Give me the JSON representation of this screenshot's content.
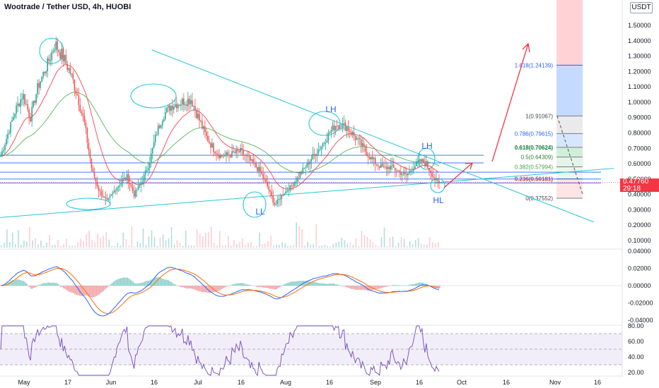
{
  "header": {
    "title": "Wootrade / Tether USD, 4h, HUOBI",
    "currency_button": "USDT"
  },
  "last_price": {
    "value": "0.47760",
    "countdown": "29:18"
  },
  "colors": {
    "bull": "#26a69a",
    "bear": "#ef5350",
    "trend": "#26c6da",
    "hline": "#2962ff",
    "ema_fast": "#f23645",
    "ema_slow": "#4caf50",
    "macd": "#2962ff",
    "signal": "#ff6d00",
    "rsi": "#7e57c2",
    "fib_text": "#2962ff",
    "projection": "#f23645"
  },
  "chart_data": [
    {
      "type": "candlestick",
      "title": "Wootrade / Tether USD, 4h, HUOBI",
      "ylim": [
        0.06,
        1.62
      ],
      "yticks": [
        "1.50000",
        "1.40000",
        "1.30000",
        "1.20000",
        "1.10000",
        "1.00000",
        "0.90000",
        "0.80000",
        "0.70000",
        "0.60000",
        "0.50000",
        "0.40000",
        "0.30000",
        "0.20000",
        "0.10000"
      ],
      "xticks": [
        "May",
        "17",
        "Jun",
        "16",
        "Jul",
        "16",
        "Aug",
        "16",
        "Sep",
        "16",
        "Oct",
        "16",
        "Nov",
        "16"
      ],
      "price_path": [
        [
          0,
          0.65
        ],
        [
          6,
          0.8
        ],
        [
          12,
          0.95
        ],
        [
          18,
          1.05
        ],
        [
          24,
          0.9
        ],
        [
          30,
          1.1
        ],
        [
          38,
          1.25
        ],
        [
          44,
          1.38
        ],
        [
          50,
          1.3
        ],
        [
          56,
          1.2
        ],
        [
          62,
          1.05
        ],
        [
          68,
          0.85
        ],
        [
          74,
          0.55
        ],
        [
          80,
          0.42
        ],
        [
          86,
          0.35
        ],
        [
          94,
          0.45
        ],
        [
          102,
          0.52
        ],
        [
          108,
          0.4
        ],
        [
          114,
          0.48
        ],
        [
          120,
          0.6
        ],
        [
          126,
          0.8
        ],
        [
          132,
          0.92
        ],
        [
          138,
          0.98
        ],
        [
          146,
          1.0
        ],
        [
          154,
          1.02
        ],
        [
          160,
          0.9
        ],
        [
          166,
          0.78
        ],
        [
          172,
          0.7
        ],
        [
          178,
          0.65
        ],
        [
          186,
          0.66
        ],
        [
          194,
          0.68
        ],
        [
          202,
          0.62
        ],
        [
          210,
          0.55
        ],
        [
          216,
          0.45
        ],
        [
          222,
          0.33
        ],
        [
          228,
          0.4
        ],
        [
          236,
          0.46
        ],
        [
          244,
          0.55
        ],
        [
          252,
          0.64
        ],
        [
          260,
          0.72
        ],
        [
          266,
          0.8
        ],
        [
          272,
          0.86
        ],
        [
          280,
          0.84
        ],
        [
          286,
          0.78
        ],
        [
          292,
          0.72
        ],
        [
          298,
          0.65
        ],
        [
          304,
          0.6
        ],
        [
          310,
          0.57
        ],
        [
          316,
          0.58
        ],
        [
          322,
          0.55
        ],
        [
          328,
          0.52
        ],
        [
          334,
          0.58
        ],
        [
          340,
          0.62
        ],
        [
          344,
          0.6
        ],
        [
          348,
          0.55
        ],
        [
          352,
          0.49
        ],
        [
          356,
          0.46
        ]
      ],
      "annotations": [
        "LH",
        "LH",
        "LL",
        "HL"
      ],
      "fibonacci": [
        {
          "label": "1.618(1.24139)",
          "value": 1.24139
        },
        {
          "label": "1(0.91067)",
          "value": 0.91067
        },
        {
          "label": "0.786(0.79615)",
          "value": 0.79615
        },
        {
          "label": "0.618(0.70624)",
          "value": 0.70624
        },
        {
          "label": "0.5(0.64309)",
          "value": 0.64309
        },
        {
          "label": "0.382(0.57994)",
          "value": 0.57994
        },
        {
          "label": "0.236(0.50181)",
          "value": 0.50181
        },
        {
          "label": "0(0.37552)",
          "value": 0.37552
        }
      ],
      "horizontal_levels": [
        0.655,
        0.605,
        0.545,
        0.5,
        0.475
      ],
      "last_price": 0.4776
    },
    {
      "type": "line",
      "name": "MACD",
      "ylim": [
        -0.045,
        0.045
      ],
      "yticks": [
        "0.04000",
        "0.02000",
        "0.00000",
        "-0.02000",
        "-0.04000"
      ]
    },
    {
      "type": "line",
      "name": "RSI",
      "ylim": [
        18,
        84
      ],
      "yticks": [
        "80.00",
        "60.00",
        "40.00",
        "20.00"
      ],
      "bands": [
        70,
        30
      ]
    }
  ]
}
